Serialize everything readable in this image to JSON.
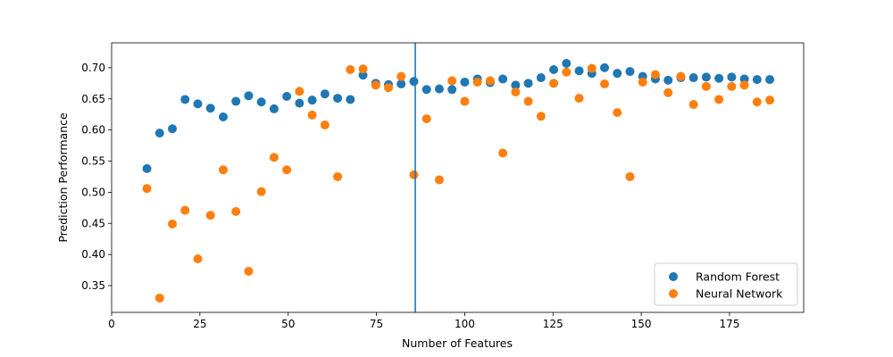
{
  "chart_data": {
    "type": "scatter",
    "title": "",
    "xlabel": "Number of Features",
    "ylabel": "Prediction Performance",
    "xlim": [
      0,
      196
    ],
    "ylim": [
      0.307,
      0.74
    ],
    "xticks": [
      0,
      25,
      50,
      75,
      100,
      125,
      150,
      175
    ],
    "yticks": [
      0.35,
      0.4,
      0.45,
      0.5,
      0.55,
      0.6,
      0.65,
      0.7
    ],
    "grid": false,
    "legend_position": "bottom-right",
    "vertical_line": {
      "x": 86,
      "color": "#1f77b4"
    },
    "x": [
      10,
      13.6,
      17.2,
      20.8,
      24.4,
      28,
      31.6,
      35.2,
      38.8,
      42.4,
      46,
      49.6,
      53.2,
      56.8,
      60.4,
      64,
      67.6,
      71.2,
      74.8,
      78.4,
      82,
      85.6,
      89.2,
      92.8,
      96.4,
      100,
      103.6,
      107.2,
      110.8,
      114.4,
      118,
      121.6,
      125.2,
      128.8,
      132.4,
      136,
      139.6,
      143.2,
      146.8,
      150.4,
      154,
      157.6,
      161.2,
      164.8,
      168.4,
      172,
      175.6,
      179.2,
      182.8,
      186.4
    ],
    "series": [
      {
        "name": "Random Forest",
        "color": "#1f77b4",
        "values": [
          0.538,
          0.595,
          0.602,
          0.649,
          0.642,
          0.635,
          0.621,
          0.646,
          0.655,
          0.645,
          0.634,
          0.654,
          0.643,
          0.648,
          0.658,
          0.651,
          0.649,
          0.688,
          0.675,
          0.673,
          0.674,
          0.678,
          0.665,
          0.666,
          0.665,
          0.677,
          0.682,
          0.676,
          0.682,
          0.672,
          0.675,
          0.684,
          0.697,
          0.707,
          0.695,
          0.691,
          0.7,
          0.691,
          0.694,
          0.686,
          0.682,
          0.68,
          0.684,
          0.684,
          0.685,
          0.683,
          0.685,
          0.682,
          0.681,
          0.681
        ]
      },
      {
        "name": "Neural Network",
        "color": "#ff7f0e",
        "values": [
          0.506,
          0.33,
          0.449,
          0.471,
          0.393,
          0.463,
          0.536,
          0.469,
          0.373,
          0.501,
          0.556,
          0.536,
          0.662,
          0.624,
          0.608,
          0.525,
          0.697,
          0.698,
          0.672,
          0.668,
          0.686,
          0.528,
          0.618,
          0.52,
          0.679,
          0.646,
          0.677,
          0.679,
          0.563,
          0.661,
          0.646,
          0.622,
          0.675,
          0.693,
          0.651,
          0.699,
          0.674,
          0.628,
          0.525,
          0.677,
          0.689,
          0.66,
          0.686,
          0.641,
          0.67,
          0.649,
          0.67,
          0.672,
          0.645,
          0.648
        ]
      }
    ]
  }
}
